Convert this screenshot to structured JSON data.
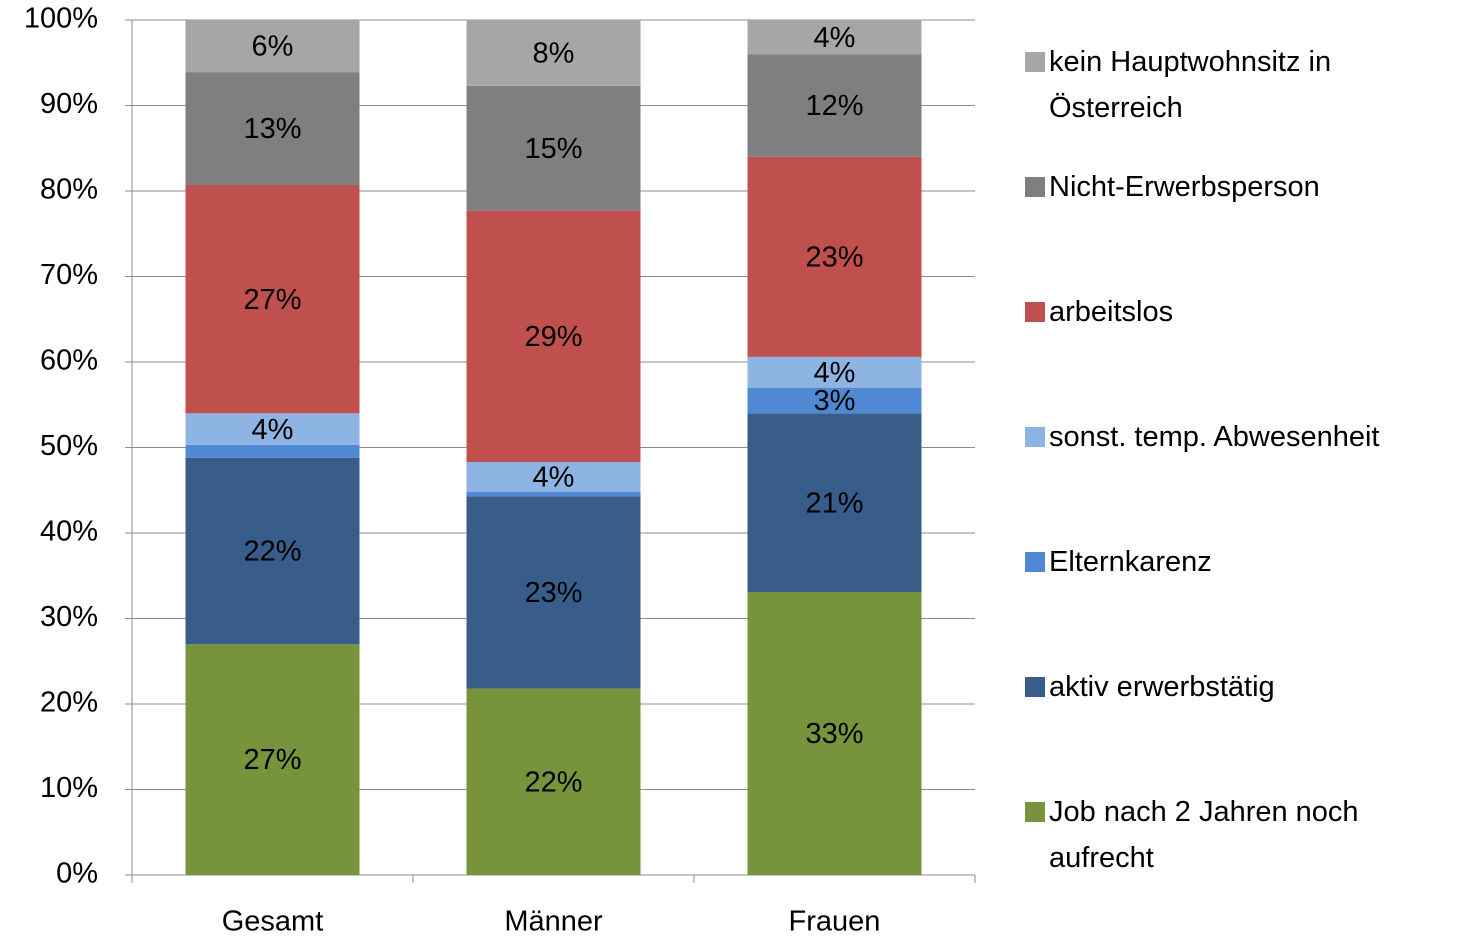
{
  "chart_data": {
    "type": "stacked-bar",
    "categories": [
      "Gesamt",
      "Männer",
      "Frauen"
    ],
    "series": [
      {
        "name": "Job nach 2 Jahren noch aufrecht",
        "color": "#77933c",
        "values": [
          27.0,
          21.8,
          33.1
        ],
        "value_labels": [
          "27%",
          "22%",
          "33%"
        ]
      },
      {
        "name": "aktiv erwerbstätig",
        "color": "#385d8a",
        "values": [
          21.8,
          22.5,
          20.9
        ],
        "value_labels": [
          "22%",
          "23%",
          "21%"
        ]
      },
      {
        "name": "Elternkarenz",
        "color": "#4f88d3",
        "values": [
          1.5,
          0.5,
          3.0
        ],
        "value_labels": [
          null,
          null,
          "3%"
        ]
      },
      {
        "name": "sonst. temp. Abwesenheit",
        "color": "#8eb4e3",
        "values": [
          3.7,
          3.5,
          3.6
        ],
        "value_labels": [
          "4%",
          "4%",
          "4%"
        ]
      },
      {
        "name": "arbeitslos",
        "color": "#c0504d",
        "values": [
          26.7,
          29.4,
          23.4
        ],
        "value_labels": [
          "27%",
          "29%",
          "23%"
        ]
      },
      {
        "name": "Nicht-Erwerbsperson",
        "color": "#7f7f7f",
        "values": [
          13.2,
          14.6,
          12.0
        ],
        "value_labels": [
          "13%",
          "15%",
          "12%"
        ]
      },
      {
        "name": "kein Hauptwohnsitz in Österreich",
        "color": "#a6a6a6",
        "values": [
          6.1,
          7.7,
          4.0
        ],
        "value_labels": [
          "6%",
          "8%",
          "4%"
        ]
      }
    ],
    "ylim": [
      0,
      100
    ],
    "yticks": [
      {
        "value": 0,
        "label": "0%"
      },
      {
        "value": 10,
        "label": "10%"
      },
      {
        "value": 20,
        "label": "20%"
      },
      {
        "value": 30,
        "label": "30%"
      },
      {
        "value": 40,
        "label": "40%"
      },
      {
        "value": 50,
        "label": "50%"
      },
      {
        "value": 60,
        "label": "60%"
      },
      {
        "value": 70,
        "label": "70%"
      },
      {
        "value": 80,
        "label": "80%"
      },
      {
        "value": 90,
        "label": "90%"
      },
      {
        "value": 100,
        "label": "100%"
      }
    ],
    "grid": true,
    "legend": "right"
  }
}
